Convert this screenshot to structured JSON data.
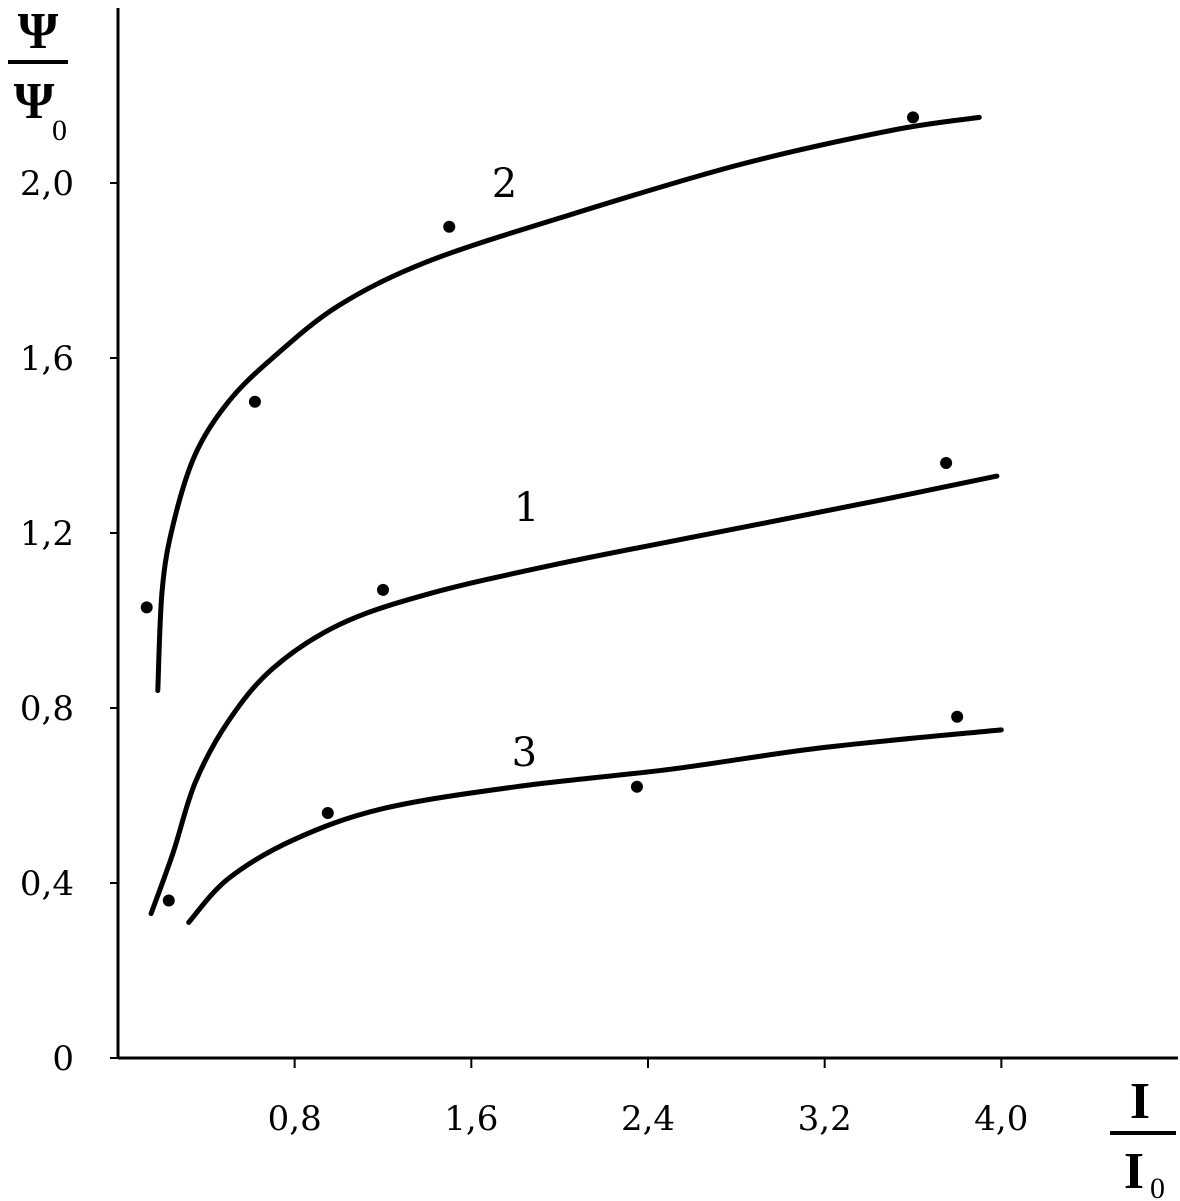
{
  "chart_data": {
    "type": "line",
    "xlabel": {
      "main": "I",
      "sub": "0",
      "denom": "I"
    },
    "ylabel": {
      "main": "Ψ",
      "sub": "0",
      "denom": "Ψ"
    },
    "xlim": [
      0,
      4.8
    ],
    "ylim": [
      0,
      2.4
    ],
    "x_ticks": [
      {
        "value": 0.8,
        "label": "0,8"
      },
      {
        "value": 1.6,
        "label": "1,6"
      },
      {
        "value": 2.4,
        "label": "2,4"
      },
      {
        "value": 3.2,
        "label": "3,2"
      },
      {
        "value": 4.0,
        "label": "4,0"
      }
    ],
    "y_ticks": [
      {
        "value": 0,
        "label": "0"
      },
      {
        "value": 0.4,
        "label": "0,4"
      },
      {
        "value": 0.8,
        "label": "0,8"
      },
      {
        "value": 1.2,
        "label": "1,2"
      },
      {
        "value": 1.6,
        "label": "1,6"
      },
      {
        "value": 2.0,
        "label": "2,0"
      }
    ],
    "grid": false,
    "series": [
      {
        "name": "1",
        "label_at": [
          1.85,
          1.26
        ],
        "curve": [
          [
            0.15,
            0.33
          ],
          [
            0.25,
            0.47
          ],
          [
            0.35,
            0.63
          ],
          [
            0.5,
            0.77
          ],
          [
            0.7,
            0.89
          ],
          [
            1.0,
            0.99
          ],
          [
            1.4,
            1.06
          ],
          [
            2.0,
            1.13
          ],
          [
            2.8,
            1.21
          ],
          [
            3.5,
            1.28
          ],
          [
            3.98,
            1.33
          ]
        ],
        "points": [
          [
            0.23,
            0.36
          ],
          [
            1.2,
            1.07
          ],
          [
            3.75,
            1.36
          ]
        ]
      },
      {
        "name": "2",
        "label_at": [
          1.75,
          2.0
        ],
        "curve": [
          [
            0.18,
            0.84
          ],
          [
            0.2,
            1.07
          ],
          [
            0.25,
            1.22
          ],
          [
            0.35,
            1.38
          ],
          [
            0.5,
            1.5
          ],
          [
            0.7,
            1.6
          ],
          [
            1.0,
            1.72
          ],
          [
            1.4,
            1.82
          ],
          [
            2.0,
            1.92
          ],
          [
            2.8,
            2.04
          ],
          [
            3.5,
            2.12
          ],
          [
            3.9,
            2.15
          ]
        ],
        "points": [
          [
            0.13,
            1.03
          ],
          [
            0.62,
            1.5
          ],
          [
            1.5,
            1.9
          ],
          [
            3.6,
            2.15
          ]
        ]
      },
      {
        "name": "3",
        "label_at": [
          1.84,
          0.7
        ],
        "curve": [
          [
            0.32,
            0.31
          ],
          [
            0.5,
            0.41
          ],
          [
            0.8,
            0.5
          ],
          [
            1.2,
            0.57
          ],
          [
            1.8,
            0.62
          ],
          [
            2.5,
            0.66
          ],
          [
            3.2,
            0.71
          ],
          [
            4.0,
            0.75
          ]
        ],
        "points": [
          [
            0.95,
            0.56
          ],
          [
            2.35,
            0.62
          ],
          [
            3.8,
            0.78
          ]
        ]
      }
    ]
  }
}
